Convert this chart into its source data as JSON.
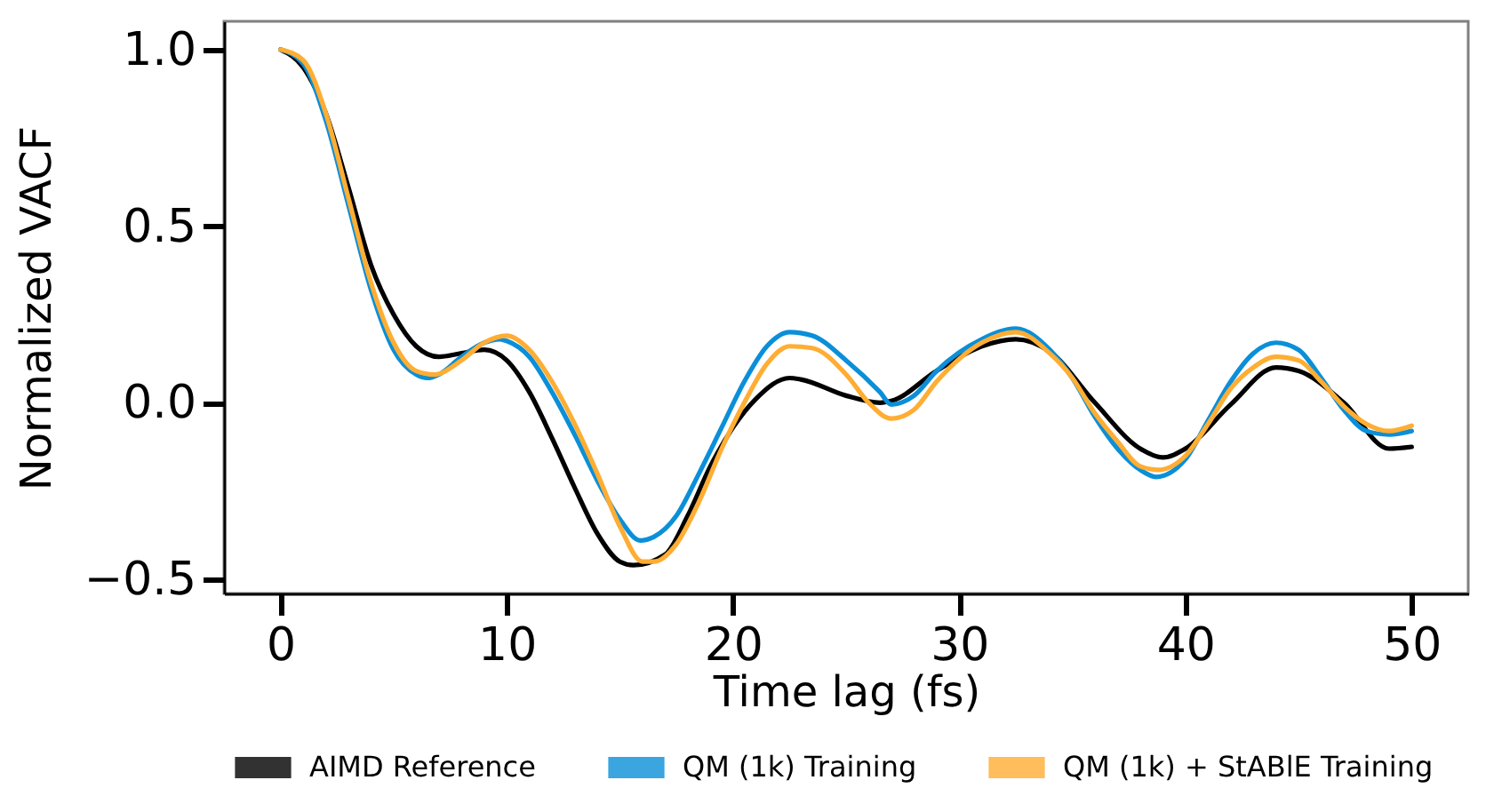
{
  "chart_data": {
    "type": "line",
    "xlabel": "Time lag (fs)",
    "ylabel": "Normalized VACF",
    "xlim": [
      -2.5,
      52.5
    ],
    "ylim": [
      -0.54,
      1.08
    ],
    "xticks": [
      0,
      10,
      20,
      30,
      40,
      50
    ],
    "yticks": [
      -0.5,
      {
        "value": 0,
        "label": "0.0"
      },
      0.5,
      {
        "value": 1,
        "label": "1.0"
      }
    ],
    "legend": "bottom",
    "series": [
      {
        "name": "AIMD Reference",
        "color": "#000000",
        "x": [
          0,
          1,
          2,
          3,
          4,
          5,
          6,
          7,
          8,
          9,
          10,
          11,
          12,
          13,
          14,
          15,
          15.6,
          17,
          18,
          19,
          20,
          21,
          22.5,
          23,
          25,
          26.5,
          27,
          29,
          31,
          32.5,
          34,
          36,
          38,
          39,
          40,
          42,
          44,
          45,
          47,
          49,
          50
        ],
        "values": [
          1.0,
          0.95,
          0.82,
          0.61,
          0.39,
          0.25,
          0.16,
          0.13,
          0.14,
          0.15,
          0.12,
          0.03,
          -0.1,
          -0.24,
          -0.37,
          -0.45,
          -0.46,
          -0.43,
          -0.32,
          -0.18,
          -0.07,
          0.01,
          0.07,
          0.066,
          0.02,
          0.0,
          0.005,
          0.09,
          0.16,
          0.18,
          0.145,
          0.0,
          -0.13,
          -0.155,
          -0.13,
          -0.005,
          0.1,
          0.09,
          0.0,
          -0.13,
          -0.125
        ]
      },
      {
        "name": "QM (1k) Training",
        "color": "#0a8fd8",
        "x": [
          0,
          1,
          2,
          3,
          4,
          5,
          6,
          6.5,
          7,
          8,
          9,
          9.7,
          10,
          11,
          12,
          13,
          14,
          15,
          15.9,
          16.5,
          17.5,
          18.5,
          19.5,
          20.5,
          21.5,
          22.5,
          23.5,
          25,
          26.5,
          27,
          28,
          29,
          31,
          32.5,
          34,
          35,
          36,
          37,
          38,
          38.7,
          40,
          41,
          42,
          43,
          44,
          45,
          46,
          47,
          48,
          49,
          50
        ],
        "values": [
          1.0,
          0.96,
          0.8,
          0.56,
          0.32,
          0.15,
          0.08,
          0.07,
          0.08,
          0.13,
          0.17,
          0.18,
          0.175,
          0.13,
          0.03,
          -0.09,
          -0.22,
          -0.33,
          -0.39,
          -0.38,
          -0.32,
          -0.2,
          -0.07,
          0.06,
          0.16,
          0.2,
          0.19,
          0.12,
          0.03,
          -0.005,
          0.02,
          0.09,
          0.18,
          0.21,
          0.15,
          0.07,
          -0.04,
          -0.13,
          -0.19,
          -0.21,
          -0.16,
          -0.05,
          0.06,
          0.14,
          0.17,
          0.15,
          0.07,
          -0.02,
          -0.08,
          -0.09,
          -0.08
        ]
      },
      {
        "name": "QM (1k) + StABlE Training",
        "color": "#ffad33",
        "x": [
          0,
          1,
          2,
          3,
          4,
          5,
          6,
          6.8,
          8,
          9,
          10,
          11,
          12,
          13,
          14,
          15,
          16,
          16.5,
          17.5,
          18.5,
          19.5,
          20.5,
          21.5,
          22.5,
          23.5,
          25,
          26,
          27,
          28,
          29,
          31,
          32.5,
          34,
          35,
          36,
          37,
          38,
          38.8,
          40,
          41,
          42,
          43,
          44,
          45,
          46,
          47,
          48,
          49,
          50
        ],
        "values": [
          1.0,
          0.97,
          0.82,
          0.58,
          0.34,
          0.17,
          0.09,
          0.08,
          0.12,
          0.17,
          0.19,
          0.15,
          0.06,
          -0.06,
          -0.2,
          -0.35,
          -0.45,
          -0.45,
          -0.4,
          -0.28,
          -0.13,
          0.0,
          0.11,
          0.16,
          0.155,
          0.08,
          0.0,
          -0.045,
          -0.02,
          0.06,
          0.17,
          0.2,
          0.14,
          0.07,
          -0.03,
          -0.11,
          -0.18,
          -0.19,
          -0.15,
          -0.06,
          0.04,
          0.1,
          0.13,
          0.12,
          0.06,
          -0.01,
          -0.06,
          -0.08,
          -0.065
        ]
      }
    ]
  }
}
